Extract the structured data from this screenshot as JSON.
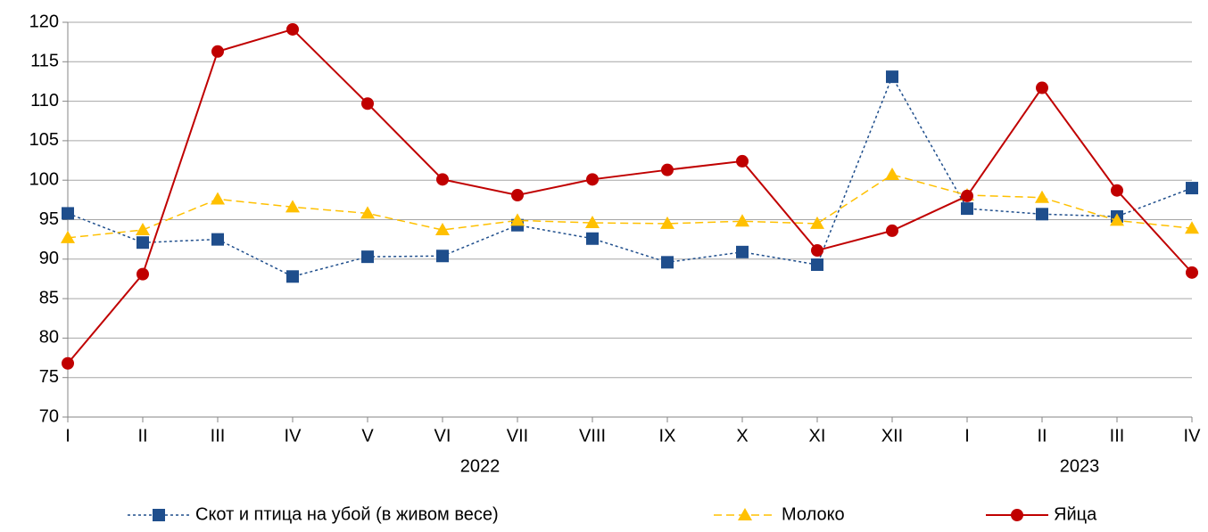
{
  "chart_data": {
    "type": "line",
    "categories": [
      "I",
      "II",
      "III",
      "IV",
      "V",
      "VI",
      "VII",
      "VIII",
      "IX",
      "X",
      "XI",
      "XII",
      "I",
      "II",
      "III",
      "IV"
    ],
    "year_groups": [
      {
        "label": "2022",
        "size": 12
      },
      {
        "label": "2023",
        "size": 4
      }
    ],
    "series": [
      {
        "name": "Скот и птица на убой (в живом весе)",
        "color": "#1f4e8c",
        "marker": "square",
        "dash": "3,3",
        "values": [
          95.8,
          92.1,
          92.5,
          87.8,
          90.3,
          90.4,
          94.3,
          92.6,
          89.6,
          90.9,
          89.3,
          113.1,
          96.4,
          95.7,
          95.4,
          99.0
        ]
      },
      {
        "name": "Молоко",
        "color": "#ffc000",
        "marker": "triangle",
        "dash": "9,5",
        "values": [
          92.7,
          93.7,
          97.6,
          96.6,
          95.8,
          93.7,
          94.9,
          94.6,
          94.5,
          94.8,
          94.5,
          100.7,
          98.1,
          97.8,
          94.9,
          93.9
        ]
      },
      {
        "name": "Яйца",
        "color": "#c00000",
        "marker": "circle",
        "dash": "none",
        "values": [
          76.8,
          88.1,
          116.3,
          119.1,
          109.7,
          100.1,
          98.1,
          100.1,
          101.3,
          102.4,
          91.1,
          93.6,
          98.0,
          111.7,
          98.7,
          88.3
        ]
      }
    ],
    "ylim": [
      70,
      120
    ],
    "yticks": [
      70,
      75,
      80,
      85,
      90,
      95,
      100,
      105,
      110,
      115,
      120
    ],
    "grid": true,
    "legend": "bottom"
  }
}
